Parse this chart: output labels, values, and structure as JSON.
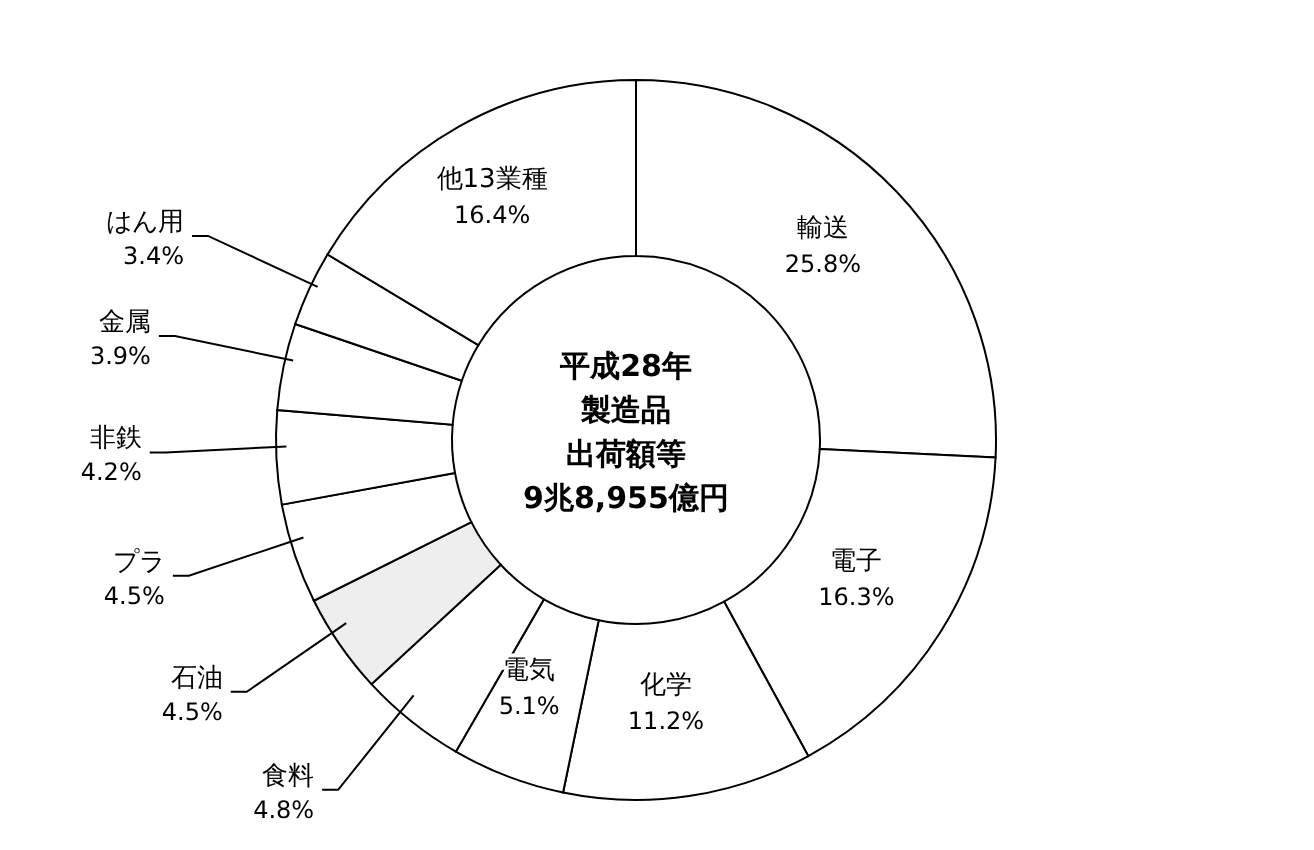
{
  "chart_data": {
    "type": "donut",
    "title": "平成28年製造品出荷額等",
    "subtitle": "9兆8,955億円",
    "categories": [
      "輸送",
      "電子",
      "化学",
      "電気",
      "食料",
      "石油",
      "プラ",
      "非鉄",
      "金属",
      "はん用",
      "他13業種"
    ],
    "values": [
      25.8,
      16.3,
      11.2,
      5.1,
      4.8,
      4.5,
      4.5,
      4.2,
      3.9,
      3.4,
      16.4
    ],
    "value_labels": [
      "25.8%",
      "16.3%",
      "11.2%",
      "5.1%",
      "4.8%",
      "4.5%",
      "4.5%",
      "4.2%",
      "3.9%",
      "3.4%",
      "16.4%"
    ],
    "colors": [
      "#ffffff",
      "#ffffff",
      "#ffffff",
      "#ffffff",
      "#ffffff",
      "#eeeeee",
      "#ffffff",
      "#ffffff",
      "#ffffff",
      "#ffffff",
      "#ffffff"
    ]
  }
}
